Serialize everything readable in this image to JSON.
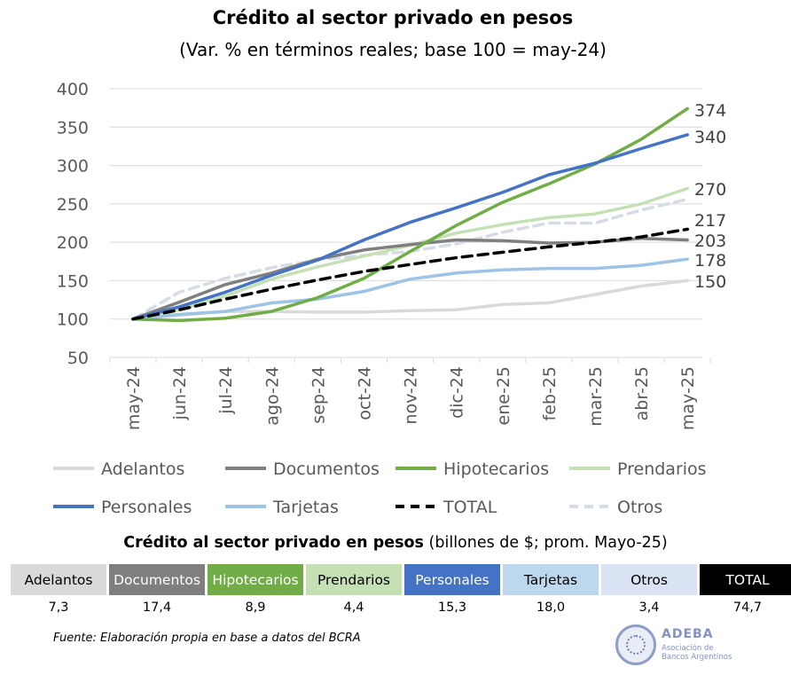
{
  "header": {
    "title": "Crédito al sector privado en pesos",
    "subtitle": "(Var. % en términos reales; base 100 = may-24)"
  },
  "chart_data": {
    "type": "line",
    "title": "Crédito al sector privado en pesos",
    "subtitle": "(Var. % en términos reales; base 100 = may-24)",
    "categories": [
      "may-24",
      "jun-24",
      "jul-24",
      "ago-24",
      "sep-24",
      "oct-24",
      "nov-24",
      "dic-24",
      "ene-25",
      "feb-25",
      "mar-25",
      "abr-25",
      "may-25"
    ],
    "y_ticks": [
      50,
      100,
      150,
      200,
      250,
      300,
      350,
      400
    ],
    "ylim": [
      50,
      400
    ],
    "grid": "horizontal",
    "legend_position": "bottom",
    "series": [
      {
        "name": "Adelantos",
        "color": "#d9d9d9",
        "dash": "solid",
        "end_label": "150",
        "values": [
          100,
          105,
          110,
          110,
          109,
          109,
          111,
          112,
          119,
          121,
          132,
          143,
          150
        ]
      },
      {
        "name": "Documentos",
        "color": "#7f7f7f",
        "dash": "solid",
        "end_label": "203",
        "values": [
          100,
          122,
          145,
          160,
          178,
          190,
          197,
          203,
          202,
          199,
          200,
          205,
          203
        ]
      },
      {
        "name": "Hipotecarios",
        "color": "#70ad47",
        "dash": "solid",
        "end_label": "374",
        "values": [
          100,
          98,
          101,
          110,
          128,
          153,
          188,
          222,
          252,
          276,
          302,
          334,
          374
        ]
      },
      {
        "name": "Prendarios",
        "color": "#c5e0b4",
        "dash": "solid",
        "end_label": "270",
        "values": [
          100,
          112,
          130,
          152,
          168,
          182,
          196,
          212,
          223,
          232,
          237,
          250,
          270
        ]
      },
      {
        "name": "Personales",
        "color": "#4472c4",
        "dash": "solid",
        "end_label": "340",
        "values": [
          100,
          116,
          135,
          157,
          177,
          203,
          226,
          245,
          265,
          288,
          303,
          322,
          340
        ]
      },
      {
        "name": "Tarjetas",
        "color": "#9dc3e6",
        "dash": "solid",
        "end_label": "178",
        "values": [
          100,
          106,
          110,
          121,
          126,
          136,
          152,
          160,
          164,
          166,
          166,
          170,
          178
        ]
      },
      {
        "name": "TOTAL",
        "color": "#000000",
        "dash": "dashed",
        "end_label": "217",
        "values": [
          100,
          112,
          126,
          139,
          151,
          162,
          171,
          180,
          187,
          194,
          200,
          207,
          217
        ]
      },
      {
        "name": "Otros",
        "color": "#d6dce5",
        "dash": "dashed",
        "end_label": "",
        "values": [
          100,
          135,
          153,
          167,
          177,
          183,
          188,
          198,
          213,
          225,
          225,
          242,
          256
        ]
      }
    ]
  },
  "table": {
    "title_bold": "Crédito al sector privado en pesos",
    "title_rest": " (billones de $; prom. Mayo-25)",
    "columns": [
      {
        "label": "Adelantos",
        "value": "7,3",
        "bg": "#d9d9d9",
        "fg": "#000000"
      },
      {
        "label": "Documentos",
        "value": "17,4",
        "bg": "#7f7f7f",
        "fg": "#ffffff"
      },
      {
        "label": "Hipotecarios",
        "value": "8,9",
        "bg": "#70ad47",
        "fg": "#ffffff"
      },
      {
        "label": "Prendarios",
        "value": "4,4",
        "bg": "#c5e0b4",
        "fg": "#000000"
      },
      {
        "label": "Personales",
        "value": "15,3",
        "bg": "#4472c4",
        "fg": "#ffffff"
      },
      {
        "label": "Tarjetas",
        "value": "18,0",
        "bg": "#bdd7ee",
        "fg": "#000000"
      },
      {
        "label": "Otros",
        "value": "3,4",
        "bg": "#dae3f3",
        "fg": "#000000"
      },
      {
        "label": "TOTAL",
        "value": "74,7",
        "bg": "#000000",
        "fg": "#ffffff"
      }
    ]
  },
  "footer": {
    "source": "Fuente: Elaboración propia en base a datos del BCRA",
    "logo_name": "ADEBA",
    "logo_sub_1": "Asociación de",
    "logo_sub_2": "Bancos Argentinos"
  }
}
